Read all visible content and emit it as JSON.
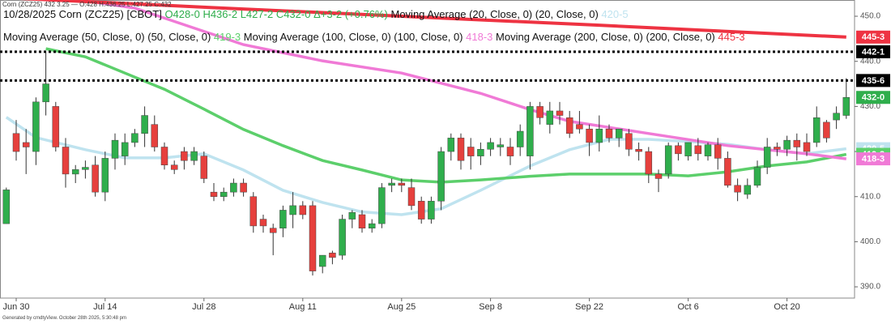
{
  "header": "Corn (ZCZ25) 432 3.25 — O:428 H:436.25 L:427.25 C:432",
  "footer": "Generated by cmdtyView. October 28th 2025, 5:30:48 pm",
  "chart_data": {
    "type": "candlestick",
    "legend": {
      "symbol": "10/28/2025 Corn (ZCZ25) [CBOT]",
      "open": "O428-0",
      "high": "H436-2",
      "low": "L427-2",
      "close": "C432-0",
      "change": "Δ+3-2 (+0.76%)"
    },
    "categories": [
      null,
      "Jun 30",
      null,
      null,
      null,
      null,
      null,
      null,
      null,
      null,
      "Jul 14",
      null,
      null,
      null,
      null,
      null,
      null,
      null,
      null,
      null,
      "Jul 28",
      null,
      null,
      null,
      null,
      null,
      null,
      null,
      null,
      null,
      "Aug 11",
      null,
      null,
      null,
      null,
      null,
      null,
      null,
      null,
      null,
      "Aug 25",
      null,
      null,
      null,
      null,
      null,
      null,
      null,
      null,
      "Sep 8",
      null,
      null,
      null,
      null,
      null,
      null,
      null,
      null,
      null,
      "Sep 22",
      null,
      null,
      null,
      null,
      null,
      null,
      null,
      null,
      null,
      "Oct 6",
      null,
      null,
      null,
      null,
      null,
      null,
      null,
      null,
      null,
      "Oct 20",
      null,
      null,
      null,
      null,
      null,
      null
    ],
    "open": [
      404,
      424,
      422,
      420,
      431,
      430,
      421,
      415,
      416,
      417,
      411,
      418.5,
      419,
      422,
      424,
      426,
      421,
      417,
      420,
      418,
      419,
      411,
      410,
      411,
      413,
      410,
      405,
      403,
      403,
      406,
      408,
      408,
      394.5,
      397.5,
      397,
      405,
      406,
      403,
      404,
      412.5,
      413,
      412,
      409,
      405,
      409,
      420,
      423,
      421,
      419,
      420.5,
      421,
      421,
      421,
      419,
      430,
      426,
      429,
      427.5,
      426,
      425,
      422,
      425,
      423,
      424,
      420.5,
      420,
      415,
      415,
      421.3,
      419,
      421.3,
      419,
      421.5,
      418.5,
      412.5,
      410.5,
      412.5,
      416.5,
      421,
      420.5,
      422.5,
      422,
      422,
      426.5,
      427,
      428
    ],
    "high": [
      412,
      427,
      425,
      432,
      442,
      431,
      423,
      417,
      418,
      419,
      420,
      424,
      424,
      425,
      430,
      428,
      422,
      418,
      421,
      421,
      420,
      413,
      412,
      414,
      414,
      411,
      406,
      404,
      408,
      411,
      409,
      409,
      397,
      398,
      406,
      407,
      407,
      405,
      413,
      414,
      414,
      414,
      410,
      410,
      421,
      424,
      424,
      423,
      422,
      423,
      423,
      423,
      426,
      431,
      431,
      431,
      431,
      429,
      429,
      426,
      428,
      426,
      425,
      425,
      422,
      421,
      416,
      422,
      422,
      422,
      423,
      422,
      423,
      420,
      414,
      414,
      418,
      423,
      422,
      423.5,
      424,
      424,
      430,
      427,
      430,
      436.25
    ],
    "low": [
      404,
      418,
      415,
      417,
      428,
      420,
      412,
      413,
      414,
      410,
      409,
      416,
      417,
      421,
      421,
      420,
      416,
      415,
      416,
      417,
      413,
      409,
      409,
      410,
      410,
      402,
      402,
      397,
      401,
      403,
      405,
      392.5,
      393,
      395,
      396,
      403,
      402,
      402,
      403,
      411,
      411,
      407,
      404,
      404,
      407,
      418,
      416,
      416,
      417,
      419,
      419,
      417,
      419,
      416,
      426,
      424,
      426,
      423,
      424,
      419,
      420,
      422,
      421,
      419,
      418,
      413,
      411,
      414,
      418,
      418,
      418,
      418,
      416,
      412,
      409,
      409.5,
      412,
      415,
      419,
      419,
      418,
      419,
      421,
      422,
      425,
      427.25
    ],
    "close": [
      411.5,
      420,
      421,
      431,
      435,
      421,
      415,
      416,
      416.5,
      411,
      418.5,
      422.5,
      422,
      424,
      428,
      421,
      417,
      416,
      418,
      420,
      414,
      410,
      411,
      413,
      411,
      403.5,
      403.5,
      402,
      407,
      408,
      406,
      393.5,
      397,
      396.5,
      405,
      406.5,
      403,
      404,
      412,
      413,
      412.5,
      408,
      405,
      409,
      420,
      423,
      418,
      419,
      420.5,
      422,
      421.5,
      419,
      424.5,
      430,
      427.5,
      429,
      428,
      424,
      425,
      422,
      425,
      423,
      425,
      420.5,
      420,
      415,
      414,
      421.3,
      419.5,
      422,
      419.5,
      421.5,
      418.5,
      412.5,
      411,
      412.5,
      416.5,
      421,
      420.5,
      422.5,
      421,
      420,
      427.5,
      423,
      428.5,
      432
    ],
    "close_label": "432-0",
    "up_color": "#2fae4c",
    "down_color": "#e6403d",
    "series": [
      {
        "name": "Moving Average (20, Close, 0) (20, Close, 0)",
        "color": "#bfe3ef",
        "x": [
          0,
          3,
          8,
          12,
          16,
          20,
          24,
          28,
          32,
          36,
          40,
          44,
          48,
          53,
          57,
          61,
          65,
          69,
          73,
          77,
          81,
          85
        ],
        "values": [
          427.6,
          423.1,
          420.4,
          418.6,
          418.6,
          419.5,
          415.9,
          411.4,
          408.7,
          406.6,
          406,
          407.3,
          411.4,
          416.8,
          420.4,
          422.7,
          422.7,
          422.2,
          421.6,
          420.4,
          419.5,
          420.625
        ],
        "value_label": "420-5"
      },
      {
        "name": "Moving Average (50, Close, 0) (50, Close, 0)",
        "color": "#5ccf6b",
        "x": [
          4,
          8,
          12,
          16,
          20,
          24,
          28,
          32,
          36,
          40,
          44,
          48,
          53,
          57,
          65,
          69,
          73,
          77,
          81,
          85
        ],
        "values": [
          442.8,
          441,
          437.4,
          433.8,
          429.4,
          424.9,
          421.3,
          418,
          415.9,
          413.7,
          413.2,
          413.7,
          414.5,
          415,
          415,
          414.6,
          415.5,
          416.8,
          417.7,
          419.375
        ],
        "value_label": "419-3"
      },
      {
        "name": "Moving Average (100, Close, 0) (100, Close, 0)",
        "color": "#f07ad6",
        "x": [
          0,
          13,
          24,
          32,
          40,
          48,
          53,
          57,
          65,
          73,
          81,
          85
        ],
        "values": [
          456,
          451.8,
          443.7,
          440.1,
          437.4,
          432.9,
          429.3,
          426.7,
          424,
          421.3,
          419.5,
          418.375
        ],
        "value_label": "418-3"
      },
      {
        "name": "Moving Average (200, Close, 0) (200, Close, 0)",
        "color": "#ee3342",
        "x": [
          0,
          20,
          40,
          60,
          85
        ],
        "values": [
          454.1,
          452,
          450,
          448,
          445.375
        ],
        "value_label": "445-3"
      }
    ],
    "hlines": [
      {
        "value": 442.125,
        "label": "442-1"
      },
      {
        "value": 435.75,
        "label": "435-6"
      }
    ],
    "ylim": [
      387.5,
      453.6
    ],
    "yticks": [
      {
        "value": 390,
        "label": "390.0"
      },
      {
        "value": 400,
        "label": "400.0"
      },
      {
        "value": 410,
        "label": "410.0"
      },
      {
        "value": 420,
        "label": "420.0"
      },
      {
        "value": 430,
        "label": "430.0"
      },
      {
        "value": 440,
        "label": "440.0"
      },
      {
        "value": 450,
        "label": "450.0"
      }
    ]
  }
}
